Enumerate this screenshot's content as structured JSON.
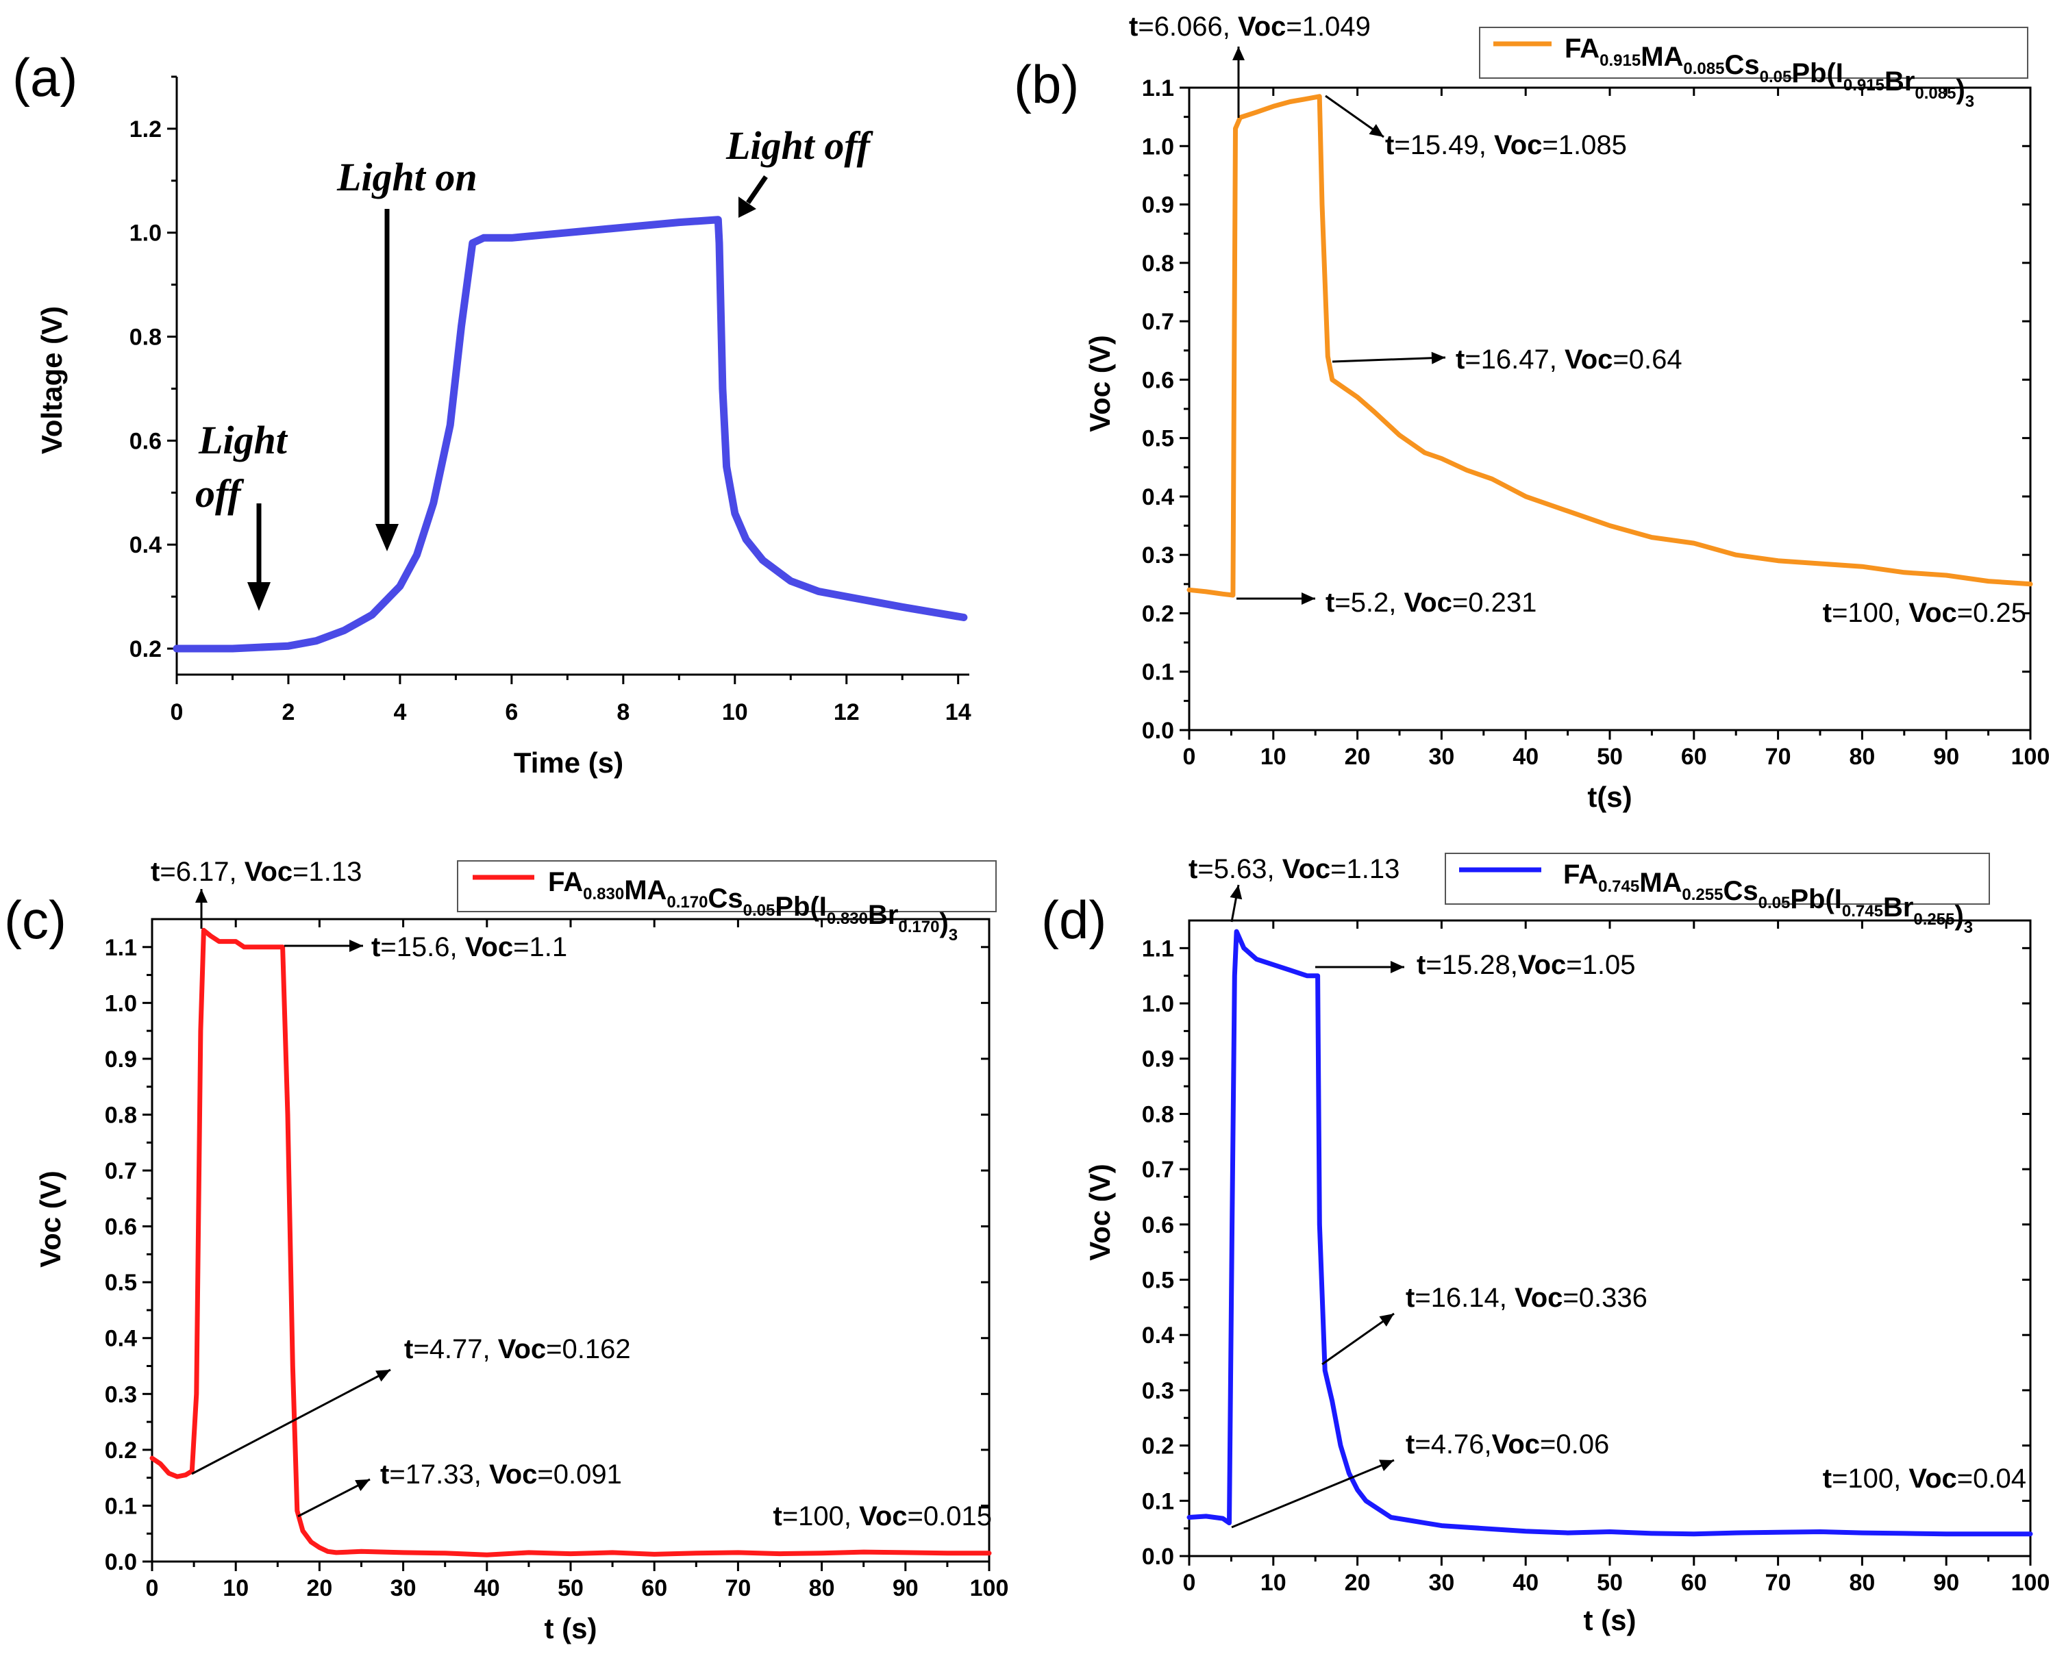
{
  "figure": {
    "panel_labels": [
      "(a)",
      "(b)",
      "(c)",
      "(d)"
    ]
  },
  "colors": {
    "a": "#4a4ae6",
    "b": "#f7931e",
    "c": "#ff1a1a",
    "d": "#1a1aff"
  },
  "chart_data": [
    {
      "panel": "a",
      "type": "line",
      "xlabel": "Time (s)",
      "ylabel": "Voltage (V)",
      "xlim": [
        0,
        14.2
      ],
      "ylim": [
        0.15,
        1.3
      ],
      "xticks": [
        0,
        2,
        4,
        6,
        8,
        10,
        12,
        14
      ],
      "yticks": [
        0.2,
        0.4,
        0.6,
        0.8,
        1.0,
        1.2
      ],
      "xtick_labels": [
        "0",
        "2",
        "4",
        "6",
        "8",
        "10",
        "12",
        "14"
      ],
      "ytick_labels": [
        "0.2",
        "0.4",
        "0.6",
        "0.8",
        "1.0",
        "1.2"
      ],
      "series": [
        {
          "name": "Voltage",
          "x": [
            0,
            1,
            2,
            2.5,
            3,
            3.5,
            4,
            4.3,
            4.6,
            4.9,
            5.1,
            5.3,
            5.5,
            6,
            7,
            8,
            9,
            9.7,
            9.72,
            9.78,
            9.85,
            10,
            10.2,
            10.5,
            11,
            11.5,
            12,
            13,
            14.1
          ],
          "y": [
            0.2,
            0.2,
            0.205,
            0.215,
            0.235,
            0.265,
            0.32,
            0.38,
            0.48,
            0.63,
            0.82,
            0.98,
            0.99,
            0.99,
            1.0,
            1.01,
            1.02,
            1.025,
            0.98,
            0.7,
            0.55,
            0.46,
            0.41,
            0.37,
            0.33,
            0.31,
            0.3,
            0.28,
            0.26
          ]
        }
      ],
      "annotations": [
        {
          "text": "Light on",
          "x": 3.75,
          "y": 0.35
        },
        {
          "text": "Light off",
          "x": 9.8,
          "y": 1.03
        },
        {
          "text": "Light off",
          "x": 1.45,
          "y": 0.2
        }
      ]
    },
    {
      "panel": "b",
      "type": "line",
      "xlabel": "t(s)",
      "ylabel": "Voc (V)",
      "xlim": [
        0,
        100
      ],
      "ylim": [
        0,
        1.1
      ],
      "xticks": [
        0,
        10,
        20,
        30,
        40,
        50,
        60,
        70,
        80,
        90,
        100
      ],
      "yticks": [
        0,
        0.1,
        0.2,
        0.3,
        0.4,
        0.5,
        0.6,
        0.7,
        0.8,
        0.9,
        1.0,
        1.1
      ],
      "xtick_labels": [
        "0",
        "10",
        "20",
        "30",
        "40",
        "50",
        "60",
        "70",
        "80",
        "90",
        "100"
      ],
      "ytick_labels": [
        "0.0",
        "0.1",
        "0.2",
        "0.3",
        "0.4",
        "0.5",
        "0.6",
        "0.7",
        "0.8",
        "0.9",
        "1.0",
        "1.1"
      ],
      "legend": {
        "base": "FA",
        "parts": [
          [
            "FA",
            "0.915"
          ],
          [
            "MA",
            "0.085"
          ],
          [
            "Cs",
            "0.05"
          ],
          [
            "Pb(I",
            "0.915"
          ],
          [
            "Br",
            "0.085"
          ],
          [
            ")",
            "3"
          ]
        ]
      },
      "series": [
        {
          "name": "FA0.915MA0.085Cs0.05Pb(I0.915Br0.085)3",
          "x": [
            0,
            2,
            4,
            5.2,
            5.5,
            6.066,
            8,
            10,
            12,
            14,
            15.49,
            15.8,
            16.47,
            17,
            18,
            20,
            22,
            25,
            28,
            30,
            33,
            36,
            40,
            45,
            50,
            55,
            60,
            65,
            70,
            75,
            80,
            85,
            90,
            95,
            100
          ],
          "y": [
            0.24,
            0.237,
            0.233,
            0.231,
            1.03,
            1.049,
            1.058,
            1.068,
            1.076,
            1.081,
            1.085,
            0.9,
            0.64,
            0.6,
            0.59,
            0.57,
            0.545,
            0.505,
            0.475,
            0.465,
            0.445,
            0.43,
            0.4,
            0.375,
            0.35,
            0.33,
            0.32,
            0.3,
            0.29,
            0.285,
            0.28,
            0.27,
            0.265,
            0.255,
            0.25
          ]
        }
      ],
      "annotations": [
        {
          "t": "t=6.066",
          "v": "Voc",
          "val": "=1.049"
        },
        {
          "t": "t=15.49",
          "v": "Voc",
          "val": "=1.085"
        },
        {
          "t": "t=16.47",
          "v": "Voc",
          "val": "=0.64"
        },
        {
          "t": "t=5.2",
          "v": "Voc",
          "val": "=0.231"
        },
        {
          "t": "t=100",
          "v": "Voc",
          "val": "=0.25"
        }
      ]
    },
    {
      "panel": "c",
      "type": "line",
      "xlabel": "t (s)",
      "ylabel": "Voc (V)",
      "xlim": [
        0,
        100
      ],
      "ylim": [
        0,
        1.15
      ],
      "xticks": [
        0,
        10,
        20,
        30,
        40,
        50,
        60,
        70,
        80,
        90,
        100
      ],
      "yticks": [
        0,
        0.1,
        0.2,
        0.3,
        0.4,
        0.5,
        0.6,
        0.7,
        0.8,
        0.9,
        1.0,
        1.1
      ],
      "xtick_labels": [
        "0",
        "10",
        "20",
        "30",
        "40",
        "50",
        "60",
        "70",
        "80",
        "90",
        "100"
      ],
      "ytick_labels": [
        "0.0",
        "0.1",
        "0.2",
        "0.3",
        "0.4",
        "0.5",
        "0.6",
        "0.7",
        "0.8",
        "0.9",
        "1.0",
        "1.1"
      ],
      "legend": {
        "parts": [
          [
            "FA",
            "0.830"
          ],
          [
            "MA",
            "0.170"
          ],
          [
            "Cs",
            "0.05"
          ],
          [
            "Pb(I",
            "0.830"
          ],
          [
            "Br",
            "0.170"
          ],
          [
            ")",
            "3"
          ]
        ]
      },
      "series": [
        {
          "name": "FA0.830MA0.170Cs0.05Pb(I0.830Br0.170)3",
          "x": [
            0,
            1,
            2,
            3,
            4,
            4.77,
            5.3,
            5.8,
            6.17,
            7,
            8,
            9,
            10,
            11,
            12,
            13,
            14,
            15,
            15.6,
            16.2,
            16.8,
            17.33,
            18,
            19,
            20,
            21,
            22,
            25,
            30,
            35,
            40,
            45,
            50,
            55,
            60,
            65,
            70,
            75,
            80,
            85,
            90,
            95,
            100
          ],
          "y": [
            0.185,
            0.175,
            0.158,
            0.152,
            0.155,
            0.162,
            0.3,
            0.95,
            1.13,
            1.12,
            1.11,
            1.11,
            1.11,
            1.1,
            1.1,
            1.1,
            1.1,
            1.1,
            1.1,
            0.8,
            0.35,
            0.091,
            0.055,
            0.035,
            0.025,
            0.018,
            0.016,
            0.018,
            0.016,
            0.015,
            0.012,
            0.016,
            0.014,
            0.016,
            0.013,
            0.015,
            0.016,
            0.014,
            0.015,
            0.017,
            0.016,
            0.015,
            0.015
          ]
        }
      ],
      "annotations": [
        {
          "t": "t=6.17",
          "v": "Voc",
          "val": "=1.13"
        },
        {
          "t": "t=15.6",
          "v": "Voc",
          "val": "=1.1"
        },
        {
          "t": "t=4.77",
          "v": "Voc",
          "val": "=0.162"
        },
        {
          "t": "t=17.33",
          "v": "Voc",
          "val": "=0.091"
        },
        {
          "t": "t=100",
          "v": "Voc",
          "val": "=0.015"
        }
      ]
    },
    {
      "panel": "d",
      "type": "line",
      "xlabel": "t (s)",
      "ylabel": "Voc (V)",
      "xlim": [
        0,
        100
      ],
      "ylim": [
        0,
        1.15
      ],
      "xticks": [
        0,
        10,
        20,
        30,
        40,
        50,
        60,
        70,
        80,
        90,
        100
      ],
      "yticks": [
        0,
        0.1,
        0.2,
        0.3,
        0.4,
        0.5,
        0.6,
        0.7,
        0.8,
        0.9,
        1.0,
        1.1
      ],
      "xtick_labels": [
        "0",
        "10",
        "20",
        "30",
        "40",
        "50",
        "60",
        "70",
        "80",
        "90",
        "100"
      ],
      "ytick_labels": [
        "0.0",
        "0.1",
        "0.2",
        "0.3",
        "0.4",
        "0.5",
        "0.6",
        "0.7",
        "0.8",
        "0.9",
        "1.0",
        "1.1"
      ],
      "legend": {
        "parts": [
          [
            "FA",
            "0.745"
          ],
          [
            "MA",
            "0.255"
          ],
          [
            "Cs",
            "0.05"
          ],
          [
            "Pb(I",
            "0.745"
          ],
          [
            "Br",
            "0.255"
          ],
          [
            ")",
            "3"
          ]
        ]
      },
      "series": [
        {
          "name": "FA0.745MA0.255Cs0.05Pb(I0.745Br0.255)3",
          "x": [
            0,
            2,
            4,
            4.76,
            5.1,
            5.4,
            5.63,
            6.5,
            8,
            10,
            12,
            14,
            15.28,
            15.5,
            16.14,
            17,
            18,
            19,
            20,
            21,
            22,
            24,
            26,
            28,
            30,
            35,
            40,
            45,
            50,
            55,
            60,
            65,
            70,
            75,
            80,
            85,
            90,
            95,
            100
          ],
          "y": [
            0.07,
            0.072,
            0.068,
            0.06,
            0.6,
            1.05,
            1.13,
            1.1,
            1.08,
            1.07,
            1.06,
            1.05,
            1.05,
            0.6,
            0.336,
            0.28,
            0.2,
            0.15,
            0.12,
            0.1,
            0.09,
            0.07,
            0.065,
            0.06,
            0.055,
            0.05,
            0.045,
            0.042,
            0.044,
            0.041,
            0.04,
            0.042,
            0.043,
            0.044,
            0.042,
            0.041,
            0.04,
            0.04,
            0.04
          ]
        }
      ],
      "annotations": [
        {
          "t": "t=5.63",
          "v": "Voc",
          "val": "=1.13"
        },
        {
          "t": "t=15.28,",
          "v": "Voc",
          "val": "=1.05"
        },
        {
          "t": "t=16.14",
          "v": "Voc",
          "val": "=0.336"
        },
        {
          "t": "t=4.76,",
          "v": "Voc",
          "val": "=0.06"
        },
        {
          "t": "t=100",
          "v": "Voc",
          "val": "=0.04"
        }
      ]
    }
  ]
}
